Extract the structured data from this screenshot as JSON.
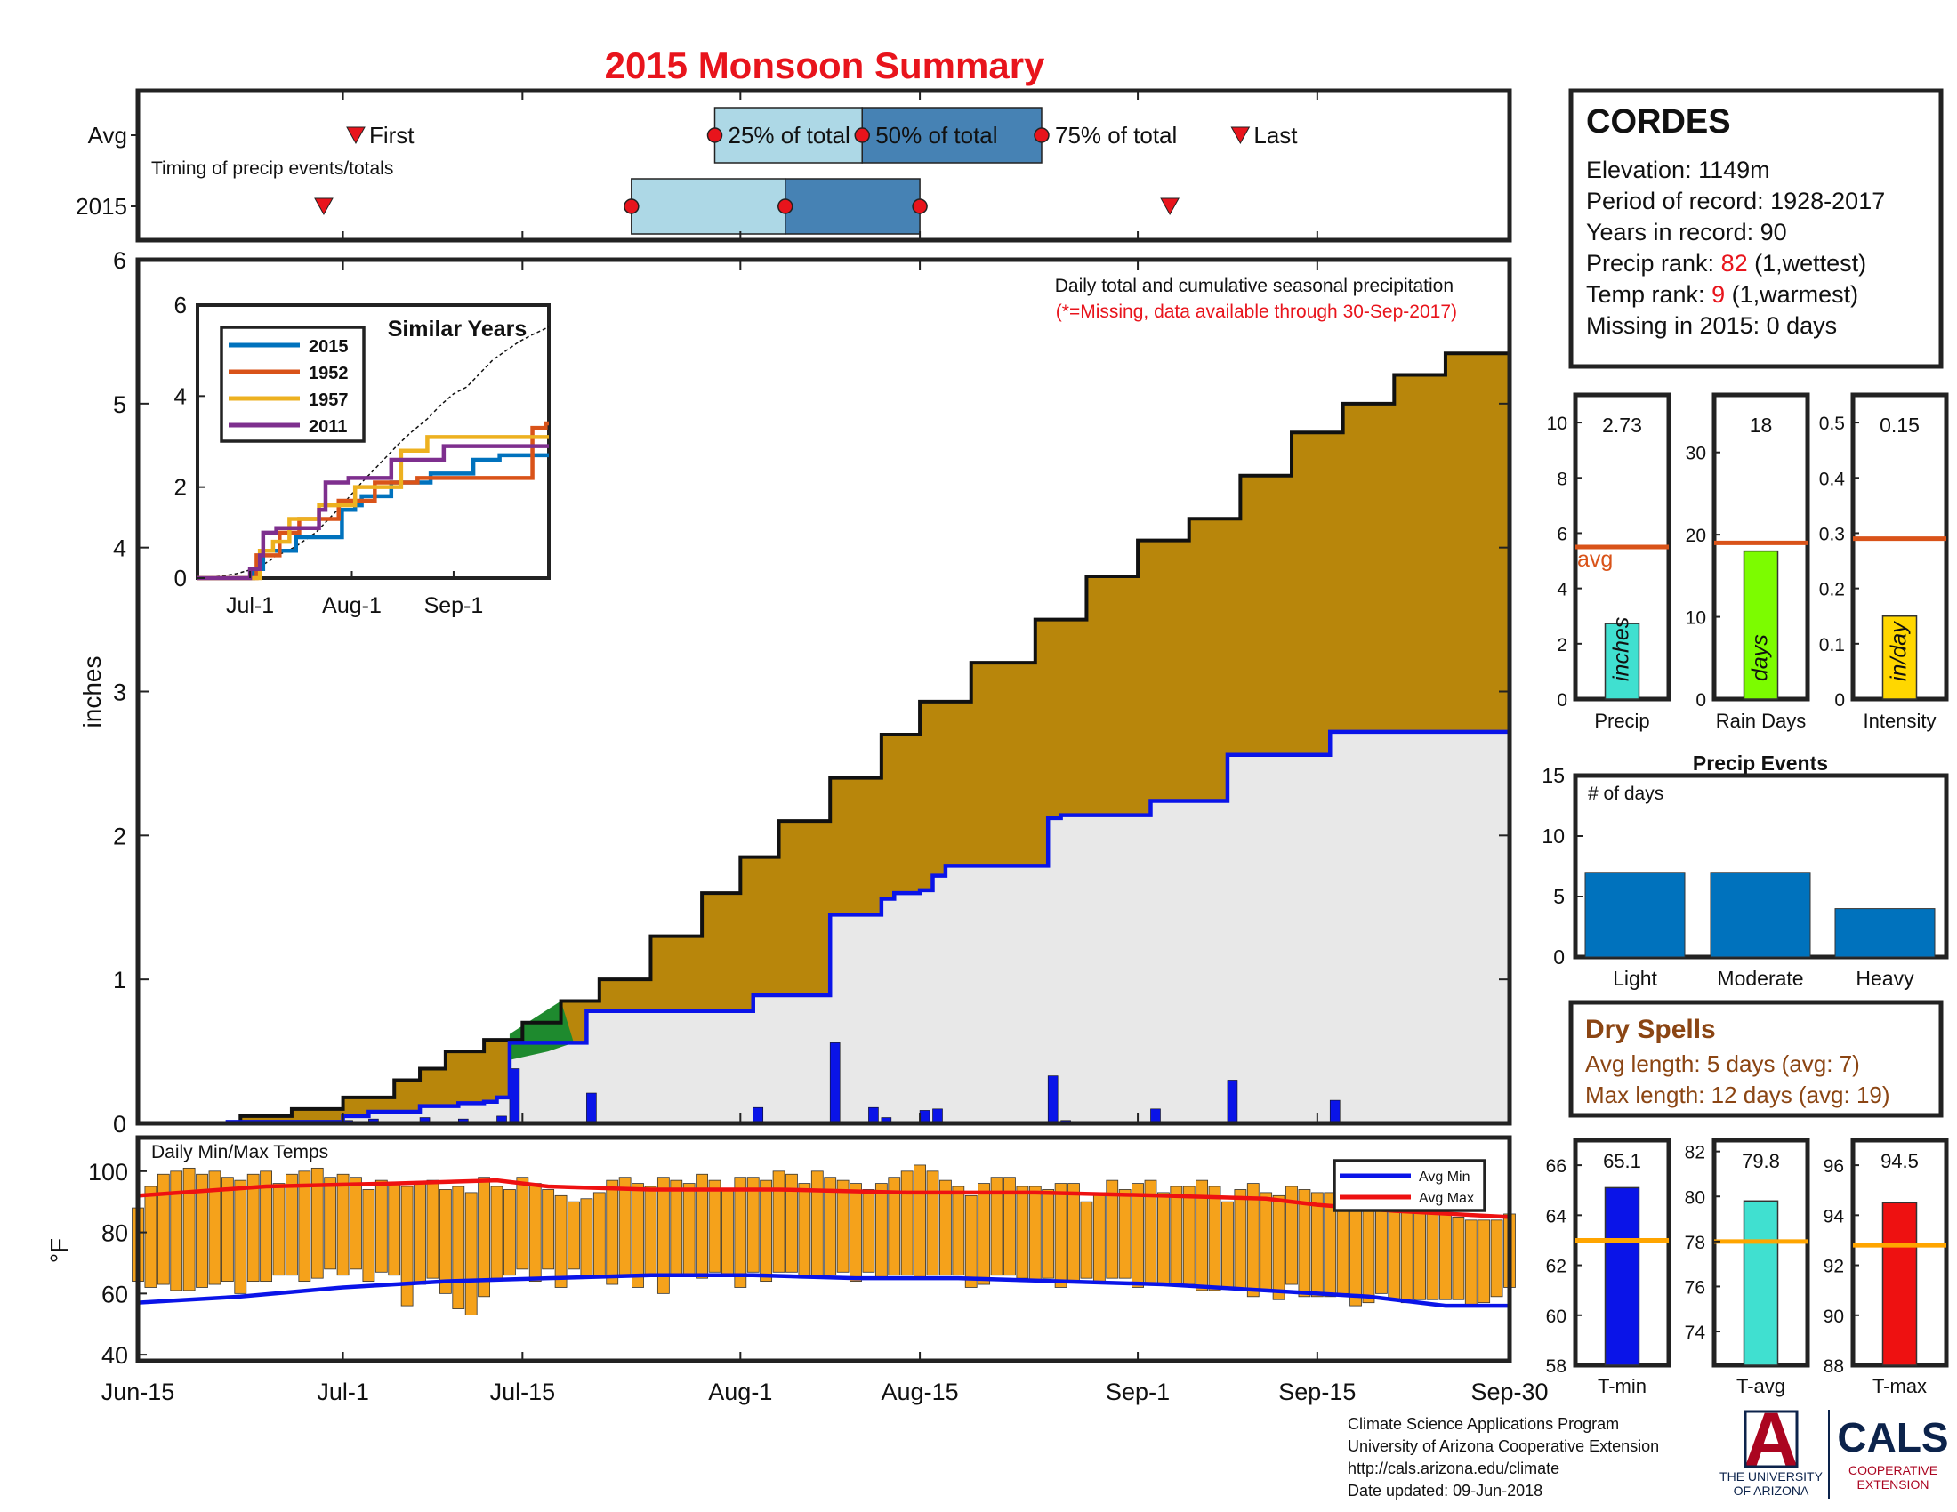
{
  "title": "2015 Monsoon Summary",
  "colors": {
    "title": "#e8141c",
    "cum_avg_fill": "#b8860b",
    "cum_2015_fill": "#e8e8e8",
    "above_avg_fill": "#1e8a2e",
    "line_2015": "#0a14e8",
    "daily_bar": "#0a14e8",
    "temp_bar": "#f5a21b",
    "avg_max_line": "#ee1111",
    "avg_min_line": "#0a14e8",
    "timing_light": "#add8e6",
    "timing_dark": "#4682b4",
    "marker_red": "#e8141c",
    "avg_orange": "#d95319",
    "accent_brown": "#8b4513",
    "gauge_precip": "#40e0d0",
    "gauge_raindays": "#7cfc00",
    "gauge_intensity": "#ffd700",
    "events_bar": "#0072bd",
    "tmin_bar": "#0a14e8",
    "tavg_bar": "#40e0d0",
    "tmax_bar": "#ee1111",
    "temp_avg_line": "#ffa500",
    "ua_red": "#ab0520",
    "ua_blue": "#0c234b"
  },
  "station": {
    "name": "CORDES",
    "lines": [
      {
        "prefix": "Elevation: 1149m",
        "highlight": "",
        "suffix": ""
      },
      {
        "prefix": "Period of record: 1928-2017",
        "highlight": "",
        "suffix": ""
      },
      {
        "prefix": "Years in record: 90",
        "highlight": "",
        "suffix": ""
      },
      {
        "prefix": "Precip rank: ",
        "highlight": "82",
        "suffix": " (1,wettest)"
      },
      {
        "prefix": "Temp rank: ",
        "highlight": "9",
        "suffix": " (1,warmest)"
      },
      {
        "prefix": "Missing in 2015: 0 days",
        "highlight": "",
        "suffix": ""
      }
    ]
  },
  "timing": {
    "row_labels": [
      "Avg",
      "2015"
    ],
    "note": "Timing of precip events/totals",
    "labels": {
      "first": "First",
      "p25": "25% of total",
      "p50": "50% of total",
      "p75": "75% of total",
      "last": "Last"
    },
    "avg": {
      "first": 17,
      "p25": 45,
      "p50": 56.5,
      "p75": 70.5,
      "last": 86
    },
    "y2015": {
      "first": 14.5,
      "p25": 38.5,
      "p50": 50.5,
      "p75": 61,
      "last": 80.5
    }
  },
  "main": {
    "ylabel": "inches",
    "ylim": [
      0,
      6
    ],
    "yticks": [
      0,
      1,
      2,
      3,
      4,
      5,
      6
    ],
    "note1": "Daily total and cumulative seasonal precipitation",
    "note2": "(*=Missing, data available through 30-Sep-2017)",
    "xticks": [
      {
        "day": 0,
        "label": "Jun-15"
      },
      {
        "day": 16,
        "label": "Jul-1"
      },
      {
        "day": 30,
        "label": "Jul-15"
      },
      {
        "day": 47,
        "label": "Aug-1"
      },
      {
        "day": 61,
        "label": "Aug-15"
      },
      {
        "day": 78,
        "label": "Sep-1"
      },
      {
        "day": 92,
        "label": "Sep-15"
      },
      {
        "day": 107,
        "label": "Sep-30"
      }
    ]
  },
  "similar": {
    "title": "Similar Years",
    "ylim": [
      0,
      6
    ],
    "yticks": [
      0,
      2,
      4,
      6
    ],
    "xticks": [
      {
        "day": 16,
        "label": "Jul-1"
      },
      {
        "day": 47,
        "label": "Aug-1"
      },
      {
        "day": 78,
        "label": "Sep-1"
      }
    ],
    "series": [
      {
        "name": "2015",
        "color": "#0072bd",
        "points": [
          [
            0,
            0
          ],
          [
            16,
            0
          ],
          [
            17,
            0.2
          ],
          [
            20,
            0.6
          ],
          [
            21,
            0.6
          ],
          [
            29,
            0.6
          ],
          [
            30,
            0.9
          ],
          [
            43,
            0.9
          ],
          [
            44,
            1.5
          ],
          [
            48,
            1.6
          ],
          [
            50,
            1.8
          ],
          [
            58,
            1.8
          ],
          [
            59,
            2.1
          ],
          [
            70,
            2.1
          ],
          [
            71,
            2.3
          ],
          [
            83,
            2.3
          ],
          [
            84,
            2.6
          ],
          [
            91,
            2.6
          ],
          [
            92,
            2.7
          ],
          [
            107,
            2.7
          ]
        ]
      },
      {
        "name": "1952",
        "color": "#d95319",
        "points": [
          [
            0,
            0
          ],
          [
            16,
            0
          ],
          [
            18,
            0.5
          ],
          [
            24,
            0.5
          ],
          [
            25,
            1.0
          ],
          [
            30,
            1.0
          ],
          [
            31,
            1.3
          ],
          [
            42,
            1.3
          ],
          [
            43,
            1.7
          ],
          [
            53,
            1.7
          ],
          [
            54,
            2.1
          ],
          [
            66,
            2.1
          ],
          [
            67,
            2.2
          ],
          [
            98,
            2.2
          ],
          [
            101,
            2.2
          ],
          [
            102,
            3.3
          ],
          [
            106,
            3.4
          ],
          [
            107,
            3.4
          ]
        ]
      },
      {
        "name": "1957",
        "color": "#edb120",
        "points": [
          [
            0,
            0
          ],
          [
            17,
            0
          ],
          [
            19,
            0.6
          ],
          [
            22,
            0.6
          ],
          [
            23,
            0.8
          ],
          [
            27,
            0.8
          ],
          [
            28,
            1.3
          ],
          [
            36,
            1.3
          ],
          [
            37,
            1.6
          ],
          [
            46,
            1.6
          ],
          [
            48,
            2.0
          ],
          [
            60,
            2.0
          ],
          [
            62,
            2.8
          ],
          [
            68,
            2.8
          ],
          [
            70,
            3.1
          ],
          [
            107,
            3.1
          ]
        ]
      },
      {
        "name": "2011",
        "color": "#7e2f8e",
        "points": [
          [
            0,
            0
          ],
          [
            15,
            0
          ],
          [
            16,
            0.2
          ],
          [
            19,
            0.5
          ],
          [
            20,
            1.0
          ],
          [
            23,
            1.0
          ],
          [
            24,
            1.1
          ],
          [
            36,
            1.1
          ],
          [
            37,
            1.5
          ],
          [
            39,
            2.1
          ],
          [
            45,
            2.1
          ],
          [
            46,
            2.2
          ],
          [
            58,
            2.2
          ],
          [
            59,
            2.6
          ],
          [
            73,
            2.6
          ],
          [
            75,
            2.9
          ],
          [
            107,
            2.9
          ]
        ]
      }
    ]
  },
  "chart_data": [
    {
      "type": "area",
      "title": "Daily total and cumulative seasonal precipitation",
      "ylabel": "inches",
      "ylim": [
        0,
        6
      ],
      "x_unit": "days since Jun-15",
      "avg_cumulative": [
        [
          0,
          0
        ],
        [
          8,
          0.05
        ],
        [
          12,
          0.1
        ],
        [
          16,
          0.18
        ],
        [
          20,
          0.3
        ],
        [
          22,
          0.38
        ],
        [
          24,
          0.5
        ],
        [
          27,
          0.58
        ],
        [
          30,
          0.7
        ],
        [
          33,
          0.85
        ],
        [
          36,
          1.0
        ],
        [
          40,
          1.3
        ],
        [
          44,
          1.6
        ],
        [
          47,
          1.85
        ],
        [
          50,
          2.1
        ],
        [
          54,
          2.4
        ],
        [
          58,
          2.7
        ],
        [
          61,
          2.93
        ],
        [
          65,
          3.2
        ],
        [
          70,
          3.5
        ],
        [
          74,
          3.8
        ],
        [
          78,
          4.05
        ],
        [
          82,
          4.2
        ],
        [
          86,
          4.5
        ],
        [
          90,
          4.8
        ],
        [
          94,
          5.0
        ],
        [
          98,
          5.2
        ],
        [
          102,
          5.35
        ],
        [
          107,
          5.52
        ]
      ],
      "cum_2015": [
        [
          0,
          0
        ],
        [
          7,
          0.01
        ],
        [
          16,
          0.05
        ],
        [
          18,
          0.08
        ],
        [
          21,
          0.08
        ],
        [
          22,
          0.12
        ],
        [
          24,
          0.12
        ],
        [
          25,
          0.14
        ],
        [
          27,
          0.15
        ],
        [
          28,
          0.18
        ],
        [
          29,
          0.56
        ],
        [
          34,
          0.56
        ],
        [
          35,
          0.78
        ],
        [
          47,
          0.78
        ],
        [
          48,
          0.89
        ],
        [
          53,
          0.89
        ],
        [
          54,
          1.45
        ],
        [
          57,
          1.45
        ],
        [
          58,
          1.56
        ],
        [
          59,
          1.6
        ],
        [
          61,
          1.62
        ],
        [
          62,
          1.72
        ],
        [
          63,
          1.79
        ],
        [
          70,
          1.79
        ],
        [
          71,
          2.12
        ],
        [
          72,
          2.14
        ],
        [
          78,
          2.14
        ],
        [
          79,
          2.24
        ],
        [
          84,
          2.24
        ],
        [
          85,
          2.56
        ],
        [
          92,
          2.56
        ],
        [
          93,
          2.72
        ],
        [
          107,
          2.72
        ]
      ],
      "daily_bars": [
        [
          16,
          0.02
        ],
        [
          18,
          0.03
        ],
        [
          22,
          0.04
        ],
        [
          25,
          0.03
        ],
        [
          28,
          0.05
        ],
        [
          29,
          0.38
        ],
        [
          35,
          0.21
        ],
        [
          48,
          0.11
        ],
        [
          54,
          0.56
        ],
        [
          57,
          0.11
        ],
        [
          58,
          0.04
        ],
        [
          61,
          0.09
        ],
        [
          62,
          0.1
        ],
        [
          71,
          0.33
        ],
        [
          72,
          0.02
        ],
        [
          79,
          0.1
        ],
        [
          85,
          0.3
        ],
        [
          93,
          0.16
        ]
      ]
    },
    {
      "type": "bar",
      "title": "Daily Min/Max Temps",
      "ylabel": "°F",
      "ylim": [
        38,
        111
      ],
      "yticks": [
        40,
        60,
        80,
        100
      ],
      "legend": [
        "Avg Min",
        "Avg Max"
      ],
      "tmax": [
        88,
        95,
        99,
        100,
        101,
        99,
        100,
        98,
        97,
        99,
        100,
        96,
        99,
        100,
        101,
        98,
        99,
        98,
        94,
        97,
        96,
        95,
        96,
        97,
        94,
        95,
        93,
        98,
        95,
        94,
        98,
        96,
        94,
        92,
        90,
        91,
        93,
        97,
        98,
        96,
        95,
        98,
        97,
        96,
        99,
        97,
        94,
        98,
        98,
        97,
        100,
        99,
        96,
        100,
        98,
        97,
        96,
        94,
        96,
        98,
        100,
        102,
        100,
        97,
        95,
        92,
        96,
        98,
        98,
        95,
        95,
        94,
        96,
        96,
        90,
        93,
        97,
        94,
        96,
        97,
        93,
        95,
        95,
        97,
        95,
        90,
        94,
        96,
        93,
        92,
        95,
        94,
        93,
        93,
        90,
        91,
        92,
        90,
        89,
        87,
        88,
        87,
        86,
        85,
        84,
        84,
        84,
        86
      ],
      "tmin": [
        64,
        62,
        63,
        61,
        61,
        62,
        63,
        64,
        60,
        64,
        64,
        66,
        66,
        64,
        65,
        68,
        66,
        68,
        64,
        67,
        66,
        56,
        63,
        65,
        60,
        55,
        53,
        59,
        65,
        66,
        68,
        64,
        68,
        62,
        68,
        65,
        65,
        63,
        66,
        62,
        66,
        60,
        66,
        66,
        65,
        67,
        66,
        62,
        67,
        64,
        67,
        67,
        65,
        65,
        66,
        67,
        64,
        67,
        65,
        66,
        66,
        65,
        66,
        66,
        66,
        62,
        63,
        66,
        66,
        65,
        64,
        65,
        62,
        64,
        65,
        64,
        65,
        65,
        62,
        63,
        63,
        63,
        63,
        61,
        61,
        62,
        61,
        59,
        61,
        58,
        63,
        59,
        59,
        59,
        60,
        56,
        57,
        60,
        58,
        57,
        58,
        58,
        58,
        58,
        56,
        57,
        59,
        62
      ],
      "avg_max": [
        [
          0,
          92
        ],
        [
          10,
          95
        ],
        [
          20,
          96
        ],
        [
          28,
          97
        ],
        [
          32,
          95
        ],
        [
          40,
          94
        ],
        [
          50,
          94
        ],
        [
          60,
          93
        ],
        [
          70,
          93
        ],
        [
          80,
          92
        ],
        [
          88,
          91
        ],
        [
          92,
          89
        ],
        [
          98,
          87
        ],
        [
          107,
          85
        ]
      ],
      "avg_min": [
        [
          0,
          57
        ],
        [
          8,
          59
        ],
        [
          16,
          62
        ],
        [
          24,
          64
        ],
        [
          32,
          65
        ],
        [
          40,
          66
        ],
        [
          48,
          66
        ],
        [
          56,
          65
        ],
        [
          64,
          65
        ],
        [
          72,
          64
        ],
        [
          80,
          63
        ],
        [
          88,
          61
        ],
        [
          96,
          59
        ],
        [
          102,
          56
        ],
        [
          107,
          56
        ]
      ]
    },
    {
      "type": "bar",
      "title": "Precip gauges",
      "gauges": [
        {
          "name": "Precip",
          "unit": "inches",
          "value": 2.73,
          "avg": 5.5,
          "ylim": [
            0,
            11
          ],
          "yticks": [
            0,
            2,
            4,
            6,
            8,
            10
          ],
          "avg_label": "avg"
        },
        {
          "name": "Rain Days",
          "unit": "days",
          "value": 18,
          "avg": 19,
          "ylim": [
            0,
            37
          ],
          "yticks": [
            0,
            10,
            20,
            30
          ],
          "avg_label": ""
        },
        {
          "name": "Intensity",
          "unit": "in/day",
          "value": 0.15,
          "avg": 0.29,
          "ylim": [
            0,
            0.55
          ],
          "yticks": [
            0,
            0.1,
            0.2,
            0.3,
            0.4,
            0.5
          ],
          "avg_label": ""
        }
      ]
    },
    {
      "type": "bar",
      "title": "Precip Events",
      "ylabel": "# of days",
      "ylim": [
        0,
        15
      ],
      "yticks": [
        0,
        5,
        10,
        15
      ],
      "categories": [
        "Light",
        "Moderate",
        "Heavy"
      ],
      "values": [
        7,
        7,
        4
      ]
    },
    {
      "type": "bar",
      "title": "Temperature gauges",
      "gauges": [
        {
          "name": "T-min",
          "value": 65.1,
          "avg": 63,
          "ylim": [
            58,
            67
          ],
          "yticks": [
            58,
            60,
            62,
            64,
            66
          ]
        },
        {
          "name": "T-avg",
          "value": 79.8,
          "avg": 78,
          "ylim": [
            72.5,
            82.5
          ],
          "yticks": [
            74,
            76,
            78,
            80,
            82
          ]
        },
        {
          "name": "T-max",
          "value": 94.5,
          "avg": 92.8,
          "ylim": [
            88,
            97
          ],
          "yticks": [
            88,
            90,
            92,
            94,
            96
          ]
        }
      ]
    }
  ],
  "dry_spells": {
    "title": "Dry Spells",
    "avg_length": "Avg length: 5 days (avg: 7)",
    "max_length": "Max length: 12 days (avg: 19)"
  },
  "footer": {
    "lines": [
      "Climate Science Applications Program",
      "University of Arizona Cooperative Extension",
      "http://cals.arizona.edu/climate",
      " Date updated: 09-Jun-2018"
    ]
  },
  "logos": {
    "ua_letter": "A",
    "ua_text": [
      "THE UNIVERSITY",
      "OF ARIZONA"
    ],
    "cals": "CALS",
    "cals_sub": [
      "COOPERATIVE",
      "EXTENSION"
    ]
  }
}
